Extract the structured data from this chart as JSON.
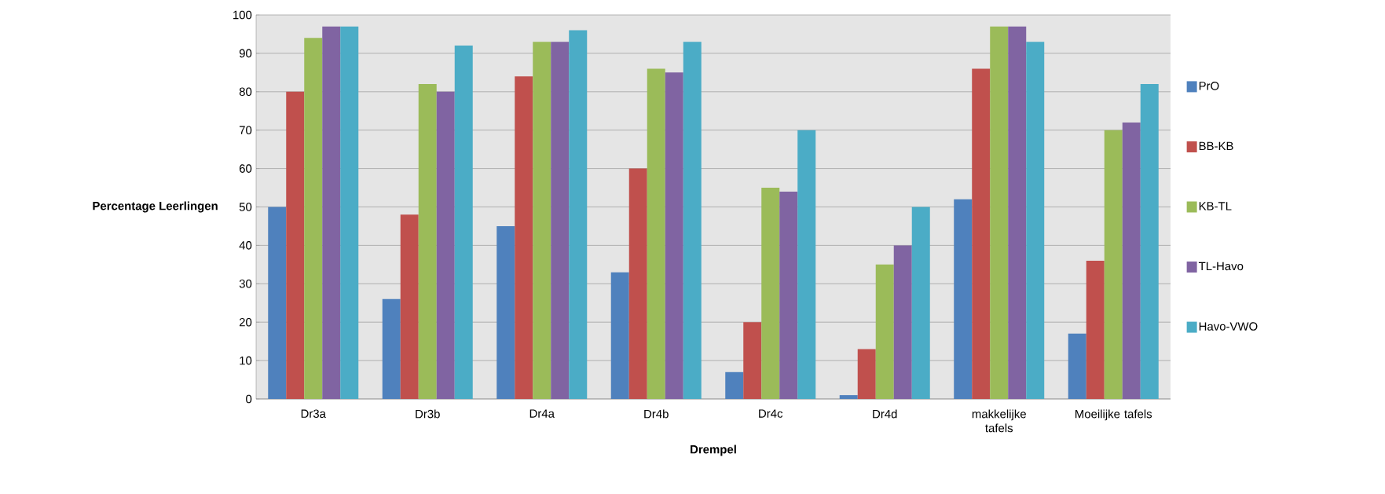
{
  "chart_data": {
    "type": "bar",
    "xlabel": "Drempel",
    "ylabel": "Percentage Leerlingen",
    "categories": [
      "Dr3a",
      "Dr3b",
      "Dr4a",
      "Dr4b",
      "Dr4c",
      "Dr4d",
      "makkelijke tafels",
      "Moeilijke tafels"
    ],
    "series": [
      {
        "name": "PrO",
        "color": "#4f81bd",
        "values": [
          50,
          26,
          45,
          33,
          7,
          1,
          52,
          17
        ]
      },
      {
        "name": "BB-KB",
        "color": "#c0504d",
        "values": [
          80,
          48,
          84,
          60,
          20,
          13,
          86,
          36
        ]
      },
      {
        "name": "KB-TL",
        "color": "#9bbb59",
        "values": [
          94,
          82,
          93,
          86,
          55,
          35,
          97,
          70
        ]
      },
      {
        "name": "TL-Havo",
        "color": "#8064a2",
        "values": [
          97,
          80,
          93,
          85,
          54,
          40,
          97,
          72
        ]
      },
      {
        "name": "Havo-VWO",
        "color": "#4bacc6",
        "values": [
          97,
          92,
          96,
          93,
          70,
          50,
          93,
          82
        ]
      }
    ],
    "ylim": [
      0,
      100
    ],
    "yticks": [
      0,
      10,
      20,
      30,
      40,
      50,
      60,
      70,
      80,
      90,
      100
    ],
    "grid": "y",
    "legend": "right"
  }
}
